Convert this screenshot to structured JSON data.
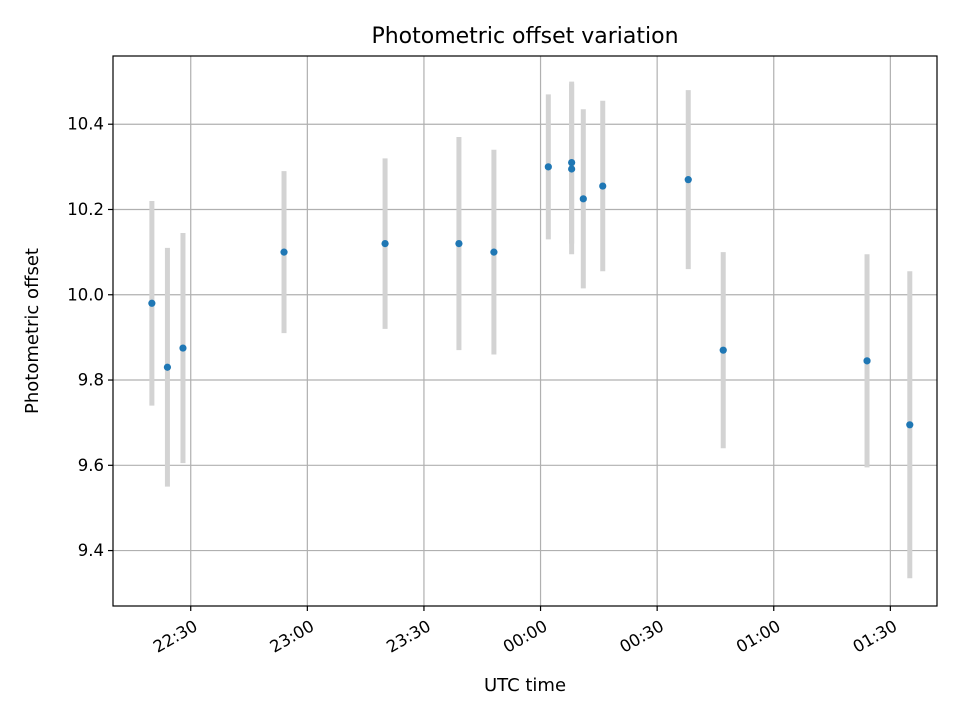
{
  "chart_data": {
    "type": "scatter",
    "title": "Photometric offset variation",
    "xlabel": "UTC time",
    "ylabel": "Photometric offset",
    "x_unit": "UTC time of night (22:00 through 01:40)",
    "xlim": [
      "22:10",
      "01:42"
    ],
    "ylim": [
      9.27,
      10.56
    ],
    "x_ticks": [
      "22:30",
      "23:00",
      "23:30",
      "00:00",
      "00:30",
      "01:00",
      "01:30"
    ],
    "y_ticks": [
      "9.4",
      "9.6",
      "9.8",
      "10.0",
      "10.2",
      "10.4"
    ],
    "y_tick_values": [
      9.4,
      9.6,
      9.8,
      10.0,
      10.2,
      10.4
    ],
    "grid": true,
    "series": [
      {
        "color": "#1f77b4",
        "error_color": "#d3d3d3",
        "points": [
          {
            "time": "22:20",
            "y": 9.98,
            "err": 0.24
          },
          {
            "time": "22:24",
            "y": 9.83,
            "err": 0.28
          },
          {
            "time": "22:28",
            "y": 9.875,
            "err": 0.27
          },
          {
            "time": "22:54",
            "y": 10.1,
            "err": 0.19
          },
          {
            "time": "23:20",
            "y": 10.12,
            "err": 0.2
          },
          {
            "time": "23:39",
            "y": 10.12,
            "err": 0.25
          },
          {
            "time": "23:48",
            "y": 10.1,
            "err": 0.24
          },
          {
            "time": "00:02",
            "y": 10.3,
            "err": 0.17
          },
          {
            "time": "00:08",
            "y": 10.31,
            "err": 0.19
          },
          {
            "time": "00:08",
            "y": 10.295,
            "err": 0.2
          },
          {
            "time": "00:11",
            "y": 10.225,
            "err": 0.21
          },
          {
            "time": "00:16",
            "y": 10.255,
            "err": 0.2
          },
          {
            "time": "00:38",
            "y": 10.27,
            "err": 0.21
          },
          {
            "time": "00:47",
            "y": 9.87,
            "err": 0.23
          },
          {
            "time": "01:24",
            "y": 9.845,
            "err": 0.25
          },
          {
            "time": "01:35",
            "y": 9.695,
            "err": 0.36
          }
        ]
      }
    ]
  }
}
